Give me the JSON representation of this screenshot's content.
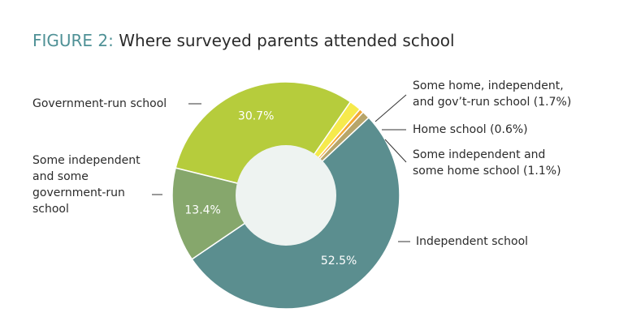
{
  "chart_data": {
    "type": "donut",
    "figure_label": "FIGURE 2:",
    "title": "Where surveyed parents attended school",
    "categories": [
      "Government-run school",
      "Some home, independent,\nand gov’t-run school (1.7%)",
      "Home school (0.6%)",
      "Some independent and\nsome home school (1.1%)",
      "Independent school",
      "Some independent\nand some\ngovernment-run\nschool"
    ],
    "values": [
      30.7,
      1.7,
      0.6,
      1.1,
      52.5,
      13.4
    ],
    "value_labels": [
      "30.7%",
      null,
      null,
      null,
      "52.5%",
      "13.4%"
    ],
    "colors": [
      "#b6cc3c",
      "#f6ea4c",
      "#f2a735",
      "#b7a56a",
      "#5b8e8f",
      "#86a76c"
    ]
  }
}
